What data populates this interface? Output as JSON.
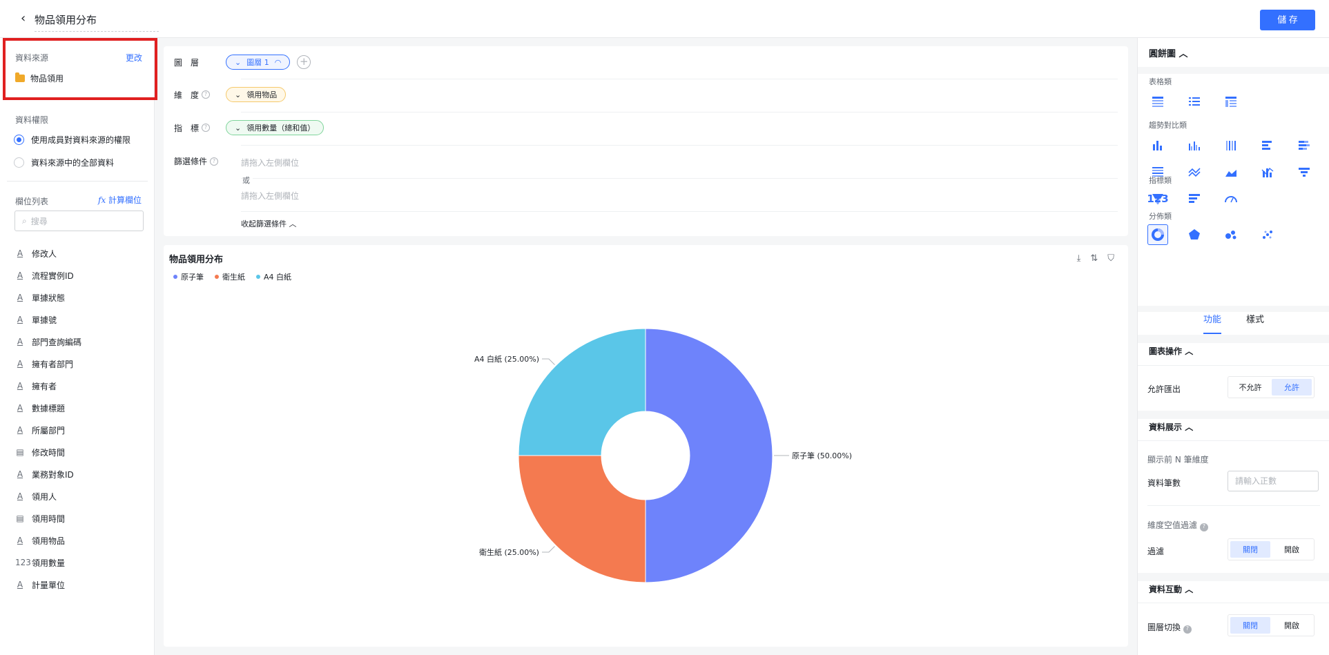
{
  "header": {
    "title": "物品領用分布",
    "save_label": "儲 存"
  },
  "left": {
    "datasource_label": "資料來源",
    "change_link": "更改",
    "datasource_name": "物品領用",
    "permission_label": "資料權限",
    "permission_options": [
      "使用成員對資料來源的權限",
      "資料來源中的全部資料"
    ],
    "field_list_label": "欄位列表",
    "calc_field_link": "計算欄位",
    "search_placeholder": "搜尋",
    "fields": [
      {
        "name": "修改人",
        "type": "text"
      },
      {
        "name": "流程實例ID",
        "type": "text"
      },
      {
        "name": "單據狀態",
        "type": "text"
      },
      {
        "name": "單據號",
        "type": "text"
      },
      {
        "name": "部門查詢編碼",
        "type": "text"
      },
      {
        "name": "擁有者部門",
        "type": "text"
      },
      {
        "name": "擁有者",
        "type": "text"
      },
      {
        "name": "數據標題",
        "type": "text"
      },
      {
        "name": "所屬部門",
        "type": "text"
      },
      {
        "name": "修改時間",
        "type": "date"
      },
      {
        "name": "業務對象ID",
        "type": "text"
      },
      {
        "name": "領用人",
        "type": "text"
      },
      {
        "name": "領用時間",
        "type": "date"
      },
      {
        "name": "領用物品",
        "type": "text"
      },
      {
        "name": "領用數量",
        "type": "number"
      },
      {
        "name": "計量單位",
        "type": "text"
      }
    ]
  },
  "config": {
    "layer_label": "圖　層",
    "layer_value": "圖層 1",
    "dimension_label": "維　度",
    "dimension_value": "領用物品",
    "metric_label": "指　標",
    "metric_value": "領用數量（總和值）",
    "filter_label": "篩選條件",
    "filter_placeholder_1": "請拖入左側欄位",
    "or_label": "或",
    "filter_placeholder_2": "請拖入左側欄位",
    "collapse_label": "收起篩選條件"
  },
  "chart_data": {
    "type": "pie",
    "title": "物品領用分布",
    "legend_position": "top-left",
    "donut": true,
    "slices": [
      {
        "name": "原子筆",
        "value": 50.0,
        "label": "原子筆 (50.00%)",
        "color": "#6e83fb"
      },
      {
        "name": "衛生紙",
        "value": 25.0,
        "label": "衛生紙 (25.00%)",
        "color": "#f47a50"
      },
      {
        "name": "A4 白紙",
        "value": 25.0,
        "label": "A4 白紙 (25.00%)",
        "color": "#5ac6e8"
      }
    ]
  },
  "right": {
    "chart_type_title": "圓餅圖",
    "groups": [
      "表格類",
      "趨勢對比類",
      "指標類",
      "分佈類"
    ],
    "tabs": [
      "功能",
      "樣式"
    ],
    "chart_ops_title": "圖表操作",
    "allow_export_label": "允許匯出",
    "allow_export_options": [
      "不允許",
      "允許"
    ],
    "data_display_title": "資料展示",
    "top_n_label": "顯示前 N 筆維度",
    "data_count_label": "資料筆數",
    "data_count_placeholder": "請輸入正數",
    "null_filter_label": "維度空值過濾",
    "filter_label": "過濾",
    "filter_options": [
      "關閉",
      "開啟"
    ],
    "interaction_title": "資料互動",
    "layer_switch_label": "圖層切換",
    "layer_switch_options": [
      "關閉",
      "開啟"
    ],
    "metric_icon_text": "123"
  }
}
